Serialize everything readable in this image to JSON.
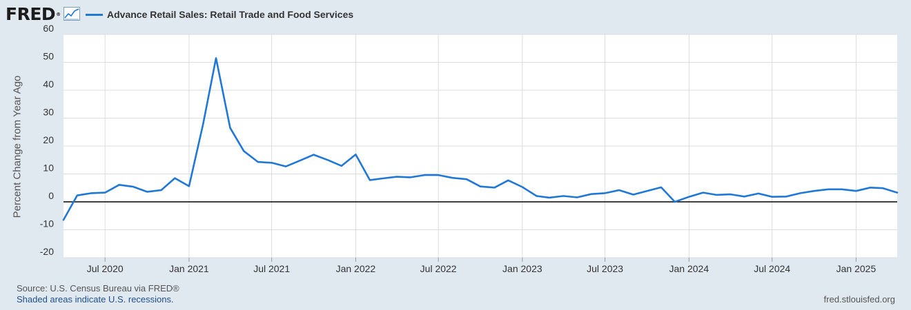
{
  "header": {
    "logo_text": "FRED",
    "logo_reg": "®",
    "logo_icon": "line-chart-icon"
  },
  "chart_data": {
    "type": "line",
    "series": [
      {
        "name": "Advance Retail Sales: Retail Trade and Food Services",
        "color": "#1f77d6",
        "points": [
          [
            "2020-04-01",
            -6.5
          ],
          [
            "2020-05-01",
            2.3
          ],
          [
            "2020-06-01",
            3.1
          ],
          [
            "2020-07-01",
            3.3
          ],
          [
            "2020-08-01",
            6.1
          ],
          [
            "2020-09-01",
            5.4
          ],
          [
            "2020-10-01",
            3.6
          ],
          [
            "2020-11-01",
            4.2
          ],
          [
            "2020-12-01",
            8.5
          ],
          [
            "2021-01-01",
            5.6
          ],
          [
            "2021-02-01",
            28.0
          ],
          [
            "2021-03-01",
            51.5
          ],
          [
            "2021-04-01",
            26.5
          ],
          [
            "2021-05-01",
            18.2
          ],
          [
            "2021-06-01",
            14.3
          ],
          [
            "2021-07-01",
            14.0
          ],
          [
            "2021-08-01",
            12.7
          ],
          [
            "2021-09-01",
            14.8
          ],
          [
            "2021-10-01",
            16.9
          ],
          [
            "2021-11-01",
            15.0
          ],
          [
            "2021-12-01",
            12.9
          ],
          [
            "2022-01-01",
            17.0
          ],
          [
            "2022-02-01",
            7.8
          ],
          [
            "2022-03-01",
            8.4
          ],
          [
            "2022-04-01",
            9.0
          ],
          [
            "2022-05-01",
            8.8
          ],
          [
            "2022-06-01",
            9.6
          ],
          [
            "2022-07-01",
            9.6
          ],
          [
            "2022-08-01",
            8.6
          ],
          [
            "2022-09-01",
            8.1
          ],
          [
            "2022-10-01",
            5.5
          ],
          [
            "2022-11-01",
            5.1
          ],
          [
            "2022-12-01",
            7.7
          ],
          [
            "2023-01-01",
            5.3
          ],
          [
            "2023-02-01",
            2.1
          ],
          [
            "2023-03-01",
            1.5
          ],
          [
            "2023-04-01",
            2.1
          ],
          [
            "2023-05-01",
            1.6
          ],
          [
            "2023-06-01",
            2.8
          ],
          [
            "2023-07-01",
            3.1
          ],
          [
            "2023-08-01",
            4.2
          ],
          [
            "2023-09-01",
            2.6
          ],
          [
            "2023-10-01",
            3.9
          ],
          [
            "2023-11-01",
            5.2
          ],
          [
            "2023-12-01",
            0.0
          ],
          [
            "2024-01-01",
            1.8
          ],
          [
            "2024-02-01",
            3.3
          ],
          [
            "2024-03-01",
            2.5
          ],
          [
            "2024-04-01",
            2.7
          ],
          [
            "2024-05-01",
            1.9
          ],
          [
            "2024-06-01",
            3.0
          ],
          [
            "2024-07-01",
            1.8
          ],
          [
            "2024-08-01",
            1.9
          ],
          [
            "2024-09-01",
            3.1
          ],
          [
            "2024-10-01",
            3.9
          ],
          [
            "2024-11-01",
            4.5
          ],
          [
            "2024-12-01",
            4.5
          ],
          [
            "2025-01-01",
            3.9
          ],
          [
            "2025-02-01",
            5.1
          ],
          [
            "2025-03-01",
            4.9
          ],
          [
            "2025-04-01",
            3.3
          ]
        ]
      }
    ],
    "xlim": [
      "2020-04-01",
      "2025-04-01"
    ],
    "x_ticks": [
      {
        "label": "Jul 2020",
        "date": "2020-07-01"
      },
      {
        "label": "Jan 2021",
        "date": "2021-01-01"
      },
      {
        "label": "Jul 2021",
        "date": "2021-07-01"
      },
      {
        "label": "Jan 2022",
        "date": "2022-01-01"
      },
      {
        "label": "Jul 2022",
        "date": "2022-07-01"
      },
      {
        "label": "Jan 2023",
        "date": "2023-01-01"
      },
      {
        "label": "Jul 2023",
        "date": "2023-07-01"
      },
      {
        "label": "Jan 2024",
        "date": "2024-01-01"
      },
      {
        "label": "Jul 2024",
        "date": "2024-07-01"
      },
      {
        "label": "Jan 2025",
        "date": "2025-01-01"
      }
    ],
    "ylim": [
      -20,
      60
    ],
    "y_ticks": [
      -20,
      -10,
      0,
      10,
      20,
      30,
      40,
      50,
      60
    ],
    "ylabel": "Percent Change from Year Ago",
    "grid": true,
    "zero_line": true,
    "legend_position": "top-left"
  },
  "footer": {
    "source": "Source: U.S. Census Bureau via FRED®",
    "recessions": "Shaded areas indicate U.S. recessions.",
    "site": "fred.stlouisfed.org"
  },
  "colors": {
    "background": "#e1e9f0",
    "plot_background": "#ffffff",
    "line": "#1f77d6",
    "grid": "#dddddd",
    "zero_line": "#000000"
  }
}
